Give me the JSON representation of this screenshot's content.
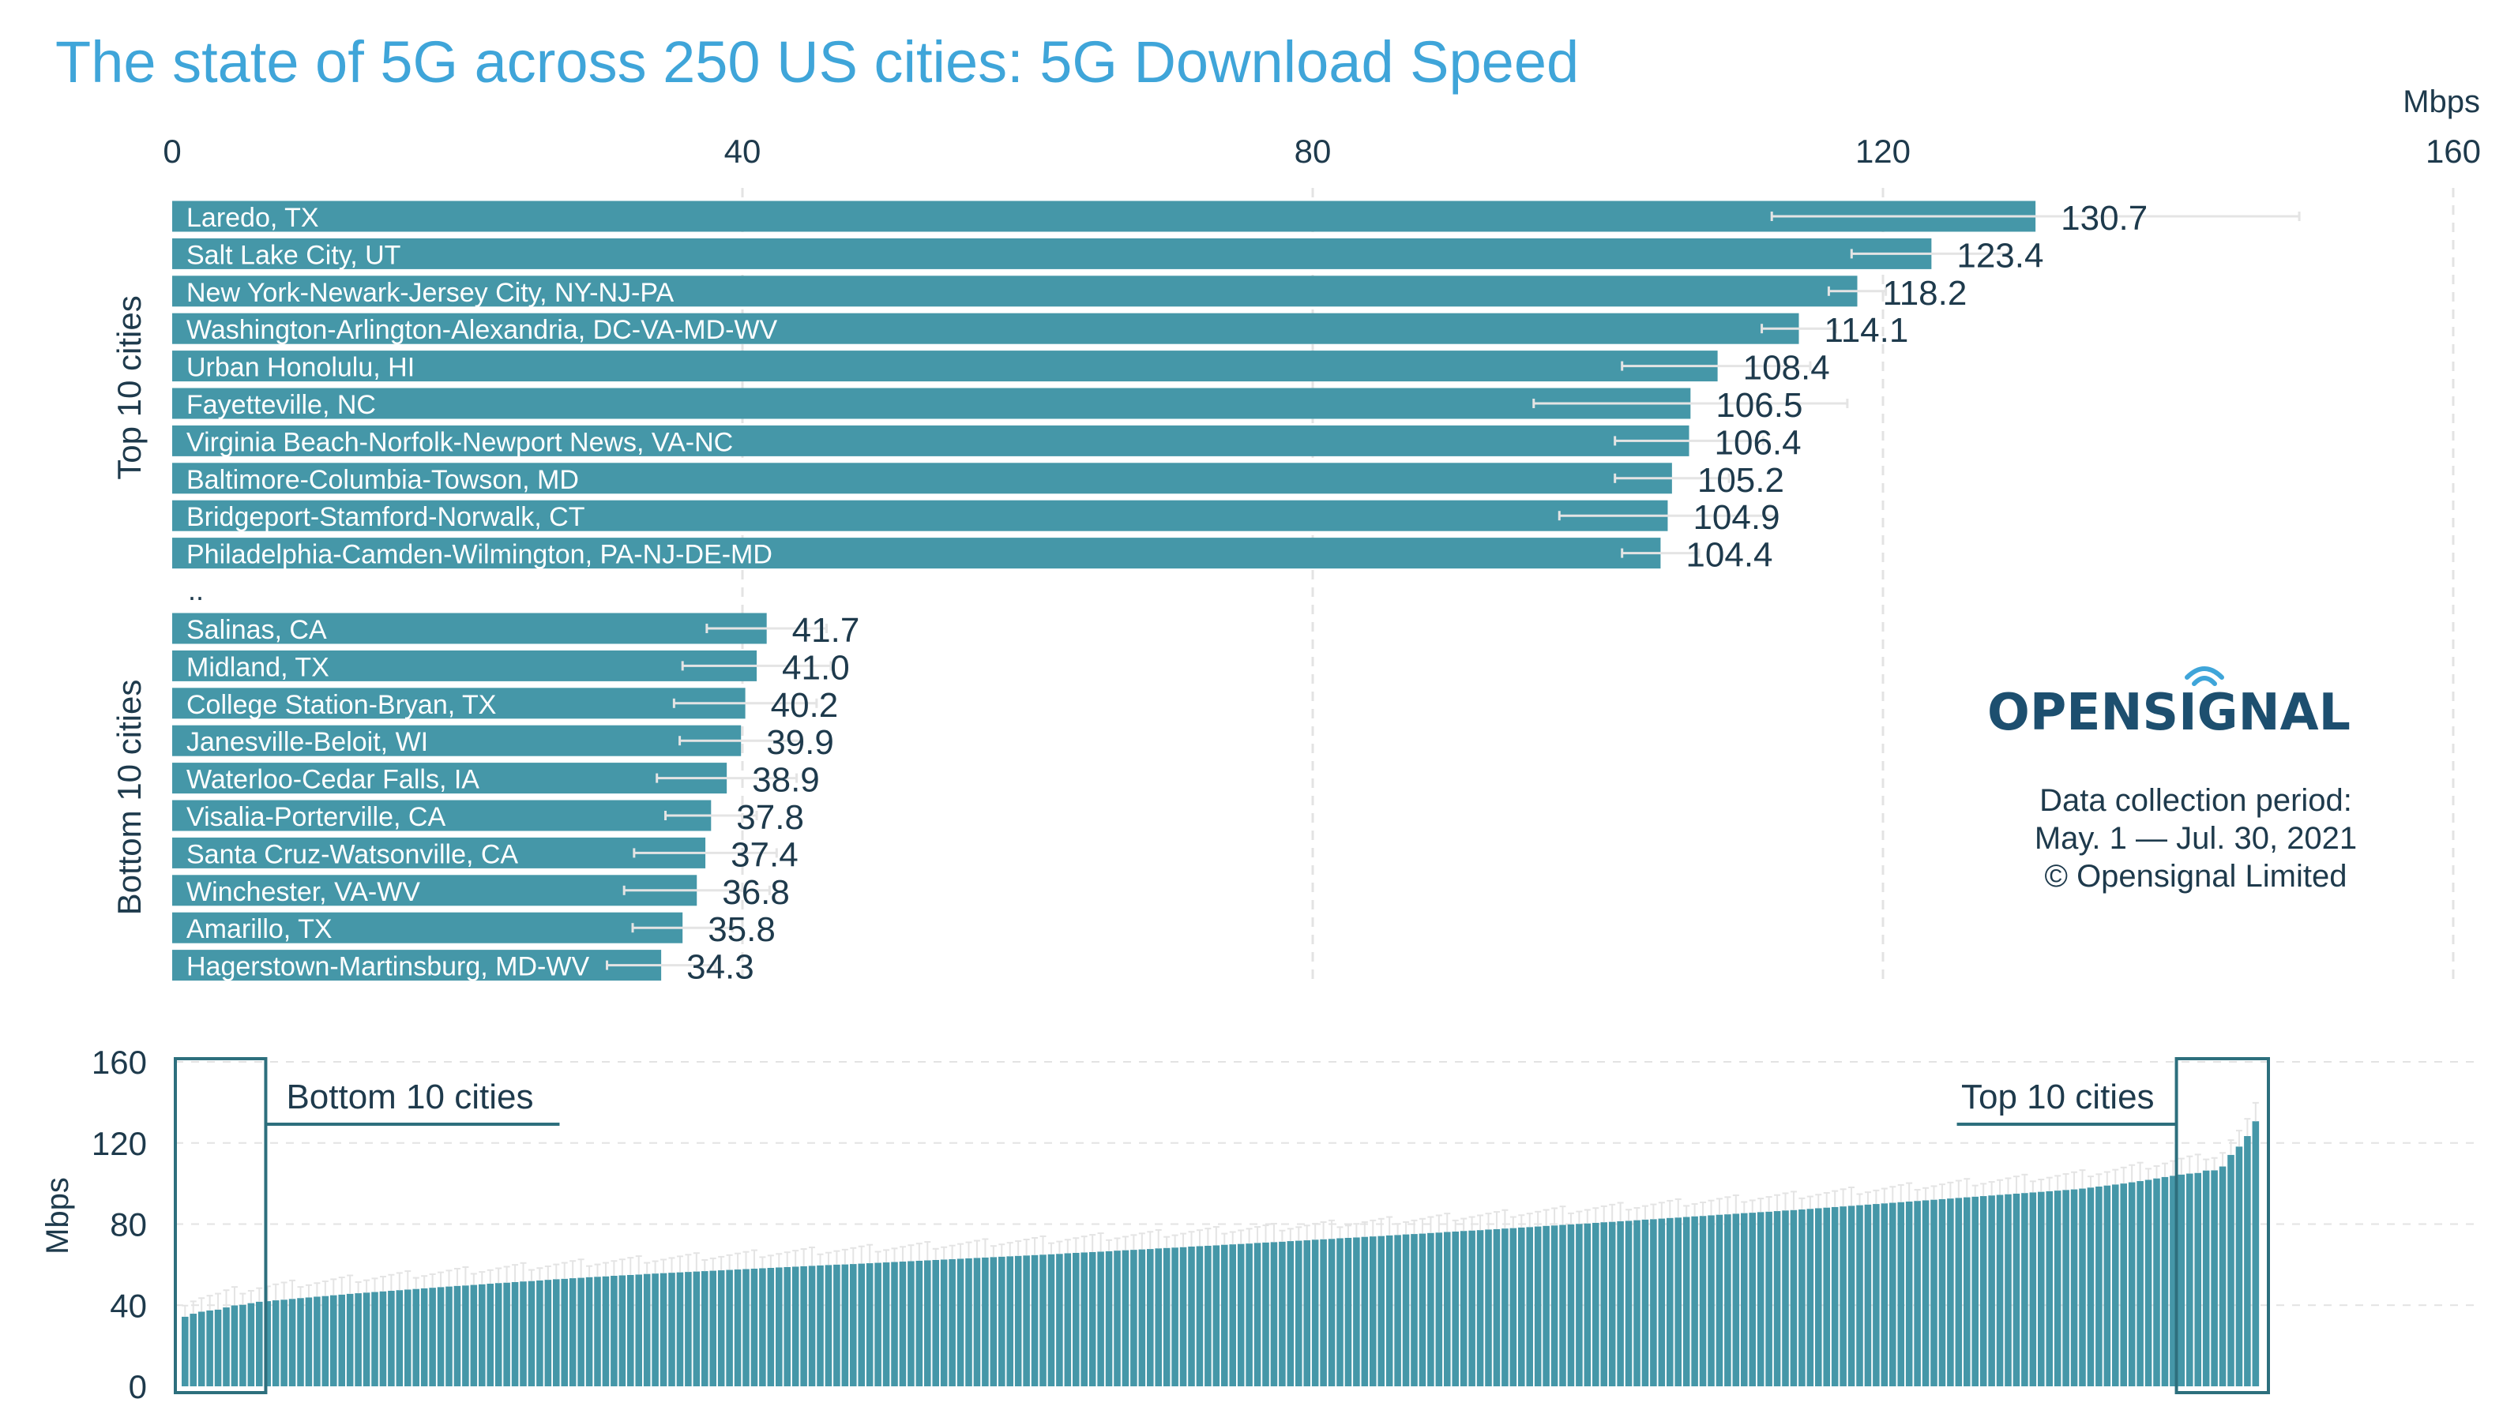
{
  "title": "The state of 5G across 250 US cities: 5G Download Speed",
  "colors": {
    "bar": "#4597a8",
    "bar_border": "#2f7a8b",
    "text": "#1e3a4c",
    "title": "#3fa5d9",
    "grid": "#e3e3e3",
    "error_bar": "#e4e4e4",
    "box": "#2d6f7d",
    "logo_text": "#1d4f6f",
    "logo_accent": "#3fa5d9"
  },
  "logo": {
    "name": "OPENSIGNAL",
    "icon": "wifi-signal-icon"
  },
  "notes": {
    "line1": "Data collection period:",
    "line2": "May. 1 — Jul. 30, 2021",
    "line3": "© Opensignal Limited"
  },
  "chart_data": [
    {
      "type": "bar",
      "orientation": "horizontal",
      "unit": "Mbps",
      "xlim": [
        0,
        160
      ],
      "xticks": [
        "0",
        "40",
        "80",
        "120",
        "160"
      ],
      "grid": true,
      "group_top_label": "Top 10 cities",
      "group_bottom_label": "Bottom 10 cities",
      "separator": "..",
      "top_categories": [
        "Laredo, TX",
        "Salt Lake City, UT",
        "New York-Newark-Jersey City, NY-NJ-PA",
        "Washington-Arlington-Alexandria, DC-VA-MD-WV",
        "Urban Honolulu, HI",
        "Fayetteville, NC",
        "Virginia Beach-Norfolk-Newport News, VA-NC",
        "Baltimore-Columbia-Towson, MD",
        "Bridgeport-Stamford-Norwalk, CT",
        "Philadelphia-Camden-Wilmington, PA-NJ-DE-MD"
      ],
      "top_values": [
        130.7,
        123.4,
        118.2,
        114.1,
        108.4,
        106.5,
        106.4,
        105.2,
        104.9,
        104.4
      ],
      "top_value_labels": [
        "130.7",
        "123.4",
        "118.2",
        "114.1",
        "108.4",
        "106.5",
        "106.4",
        "105.2",
        "104.9",
        "104.4"
      ],
      "top_ci": [
        [
          112.2,
          149.2
        ],
        [
          117.8,
          128.8
        ],
        [
          116.2,
          120.2
        ],
        [
          111.5,
          116.7
        ],
        [
          101.7,
          114.9
        ],
        [
          95.5,
          117.5
        ],
        [
          101.2,
          111.6
        ],
        [
          101.2,
          109.2
        ],
        [
          97.3,
          112.5
        ],
        [
          101.7,
          107.1
        ]
      ],
      "bottom_categories": [
        "Salinas, CA",
        "Midland, TX",
        "College Station-Bryan, TX",
        "Janesville-Beloit, WI",
        "Waterloo-Cedar Falls, IA",
        "Visalia-Porterville, CA",
        "Santa Cruz-Watsonville, CA",
        "Winchester, VA-WV",
        "Amarillo, TX",
        "Hagerstown-Martinsburg, MD-WV"
      ],
      "bottom_values": [
        41.7,
        41.0,
        40.2,
        39.9,
        38.9,
        37.8,
        37.4,
        36.8,
        35.8,
        34.3
      ],
      "bottom_value_labels": [
        "41.7",
        "41.0",
        "40.2",
        "39.9",
        "38.9",
        "37.8",
        "37.4",
        "36.8",
        "35.8",
        "34.3"
      ],
      "bottom_ci": [
        [
          37.5,
          45.9
        ],
        [
          35.8,
          46.2
        ],
        [
          35.2,
          45.2
        ],
        [
          35.6,
          44.2
        ],
        [
          34.0,
          43.8
        ],
        [
          34.6,
          41.0
        ],
        [
          32.4,
          42.4
        ],
        [
          31.7,
          41.9
        ],
        [
          32.3,
          39.3
        ],
        [
          30.5,
          38.1
        ]
      ]
    },
    {
      "type": "bar",
      "orientation": "vertical",
      "series_count": 250,
      "ylabel": "Mbps",
      "ylim": [
        0,
        160
      ],
      "yticks": [
        "0",
        "40",
        "80",
        "120",
        "160"
      ],
      "sorted": "ascending",
      "values": [
        34.3,
        35.8,
        36.8,
        37.4,
        37.8,
        38.9,
        39.9,
        40.2,
        41.0,
        41.7,
        42.0,
        42.4,
        42.7,
        43.1,
        43.5,
        43.8,
        44.2,
        44.5,
        44.9,
        45.2,
        45.6,
        45.9,
        46.2,
        46.5,
        46.8,
        47.1,
        47.4,
        47.7,
        48.0,
        48.3,
        48.6,
        48.9,
        49.2,
        49.5,
        49.7,
        50.0,
        50.3,
        50.6,
        50.9,
        51.1,
        51.4,
        51.7,
        51.9,
        52.2,
        52.5,
        52.8,
        53.0,
        53.3,
        53.5,
        53.8,
        54.0,
        54.2,
        54.5,
        54.7,
        54.9,
        55.1,
        55.4,
        55.6,
        55.8,
        56.0,
        56.2,
        56.4,
        56.6,
        56.8,
        57.0,
        57.2,
        57.4,
        57.6,
        57.8,
        58.0,
        58.2,
        58.4,
        58.6,
        58.8,
        59.0,
        59.2,
        59.4,
        59.6,
        59.8,
        60.0,
        60.1,
        60.3,
        60.5,
        60.7,
        60.9,
        61.1,
        61.3,
        61.5,
        61.7,
        61.9,
        62.1,
        62.3,
        62.5,
        62.7,
        62.9,
        63.1,
        63.3,
        63.5,
        63.7,
        63.9,
        64.1,
        64.3,
        64.5,
        64.7,
        64.9,
        65.1,
        65.3,
        65.6,
        65.8,
        66.0,
        66.2,
        66.4,
        66.6,
        66.9,
        67.1,
        67.3,
        67.5,
        67.7,
        68.0,
        68.2,
        68.4,
        68.6,
        68.9,
        69.1,
        69.3,
        69.5,
        69.8,
        70.0,
        70.2,
        70.4,
        70.7,
        70.9,
        71.1,
        71.3,
        71.6,
        71.8,
        72.0,
        72.3,
        72.5,
        72.7,
        73.0,
        73.2,
        73.4,
        73.7,
        73.9,
        74.1,
        74.4,
        74.6,
        74.9,
        75.1,
        75.3,
        75.6,
        75.8,
        76.1,
        76.3,
        76.6,
        76.8,
        77.0,
        77.3,
        77.5,
        77.8,
        78.0,
        78.3,
        78.5,
        78.8,
        79.1,
        79.3,
        79.6,
        79.8,
        80.1,
        80.3,
        80.6,
        80.9,
        81.1,
        81.4,
        81.6,
        81.9,
        82.2,
        82.4,
        82.7,
        83.0,
        83.2,
        83.5,
        83.8,
        84.0,
        84.3,
        84.6,
        84.8,
        85.1,
        85.4,
        85.6,
        85.9,
        86.1,
        86.4,
        86.7,
        86.9,
        87.2,
        87.5,
        87.8,
        88.1,
        88.4,
        88.7,
        89.0,
        89.3,
        89.6,
        89.9,
        90.2,
        90.5,
        90.8,
        91.1,
        91.4,
        91.7,
        92.0,
        92.3,
        92.6,
        92.9,
        93.2,
        93.5,
        93.8,
        94.1,
        94.4,
        94.7,
        95.0,
        95.3,
        95.6,
        95.9,
        96.2,
        96.5,
        96.8,
        97.1,
        97.5,
        98.0,
        98.5,
        99.0,
        99.5,
        100.0,
        100.6,
        101.2,
        101.8,
        102.5,
        103.2,
        103.8,
        104.4,
        104.9,
        105.2,
        106.4,
        106.5,
        108.4,
        114.1,
        118.2,
        123.4,
        130.7
      ],
      "highlight_left_label": "Bottom 10 cities",
      "highlight_right_label": "Top 10 cities"
    }
  ]
}
